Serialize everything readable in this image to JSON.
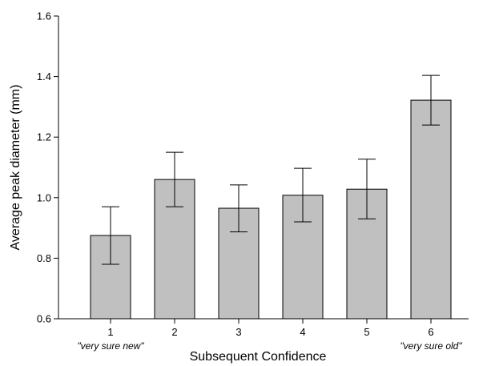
{
  "chart_data": {
    "type": "bar",
    "title": "",
    "xlabel": "Subsequent Confidence",
    "ylabel": "Average peak diameter (mm)",
    "categories": [
      "1",
      "2",
      "3",
      "4",
      "5",
      "6"
    ],
    "values": [
      0.875,
      1.06,
      0.965,
      1.008,
      1.028,
      1.322
    ],
    "error_upper": [
      0.97,
      1.15,
      1.042,
      1.097,
      1.127,
      1.404
    ],
    "error_lower": [
      0.78,
      0.97,
      0.887,
      0.92,
      0.93,
      1.24
    ],
    "ylim": [
      0.6,
      1.6
    ],
    "yticks": [
      "0.6",
      "0.8",
      "1.0",
      "1.2",
      "1.4",
      "1.6"
    ],
    "bar_color": "#c0c0c0",
    "grid": false,
    "annotations": {
      "low": "\"very sure new\"",
      "high": "\"very sure old\""
    }
  }
}
